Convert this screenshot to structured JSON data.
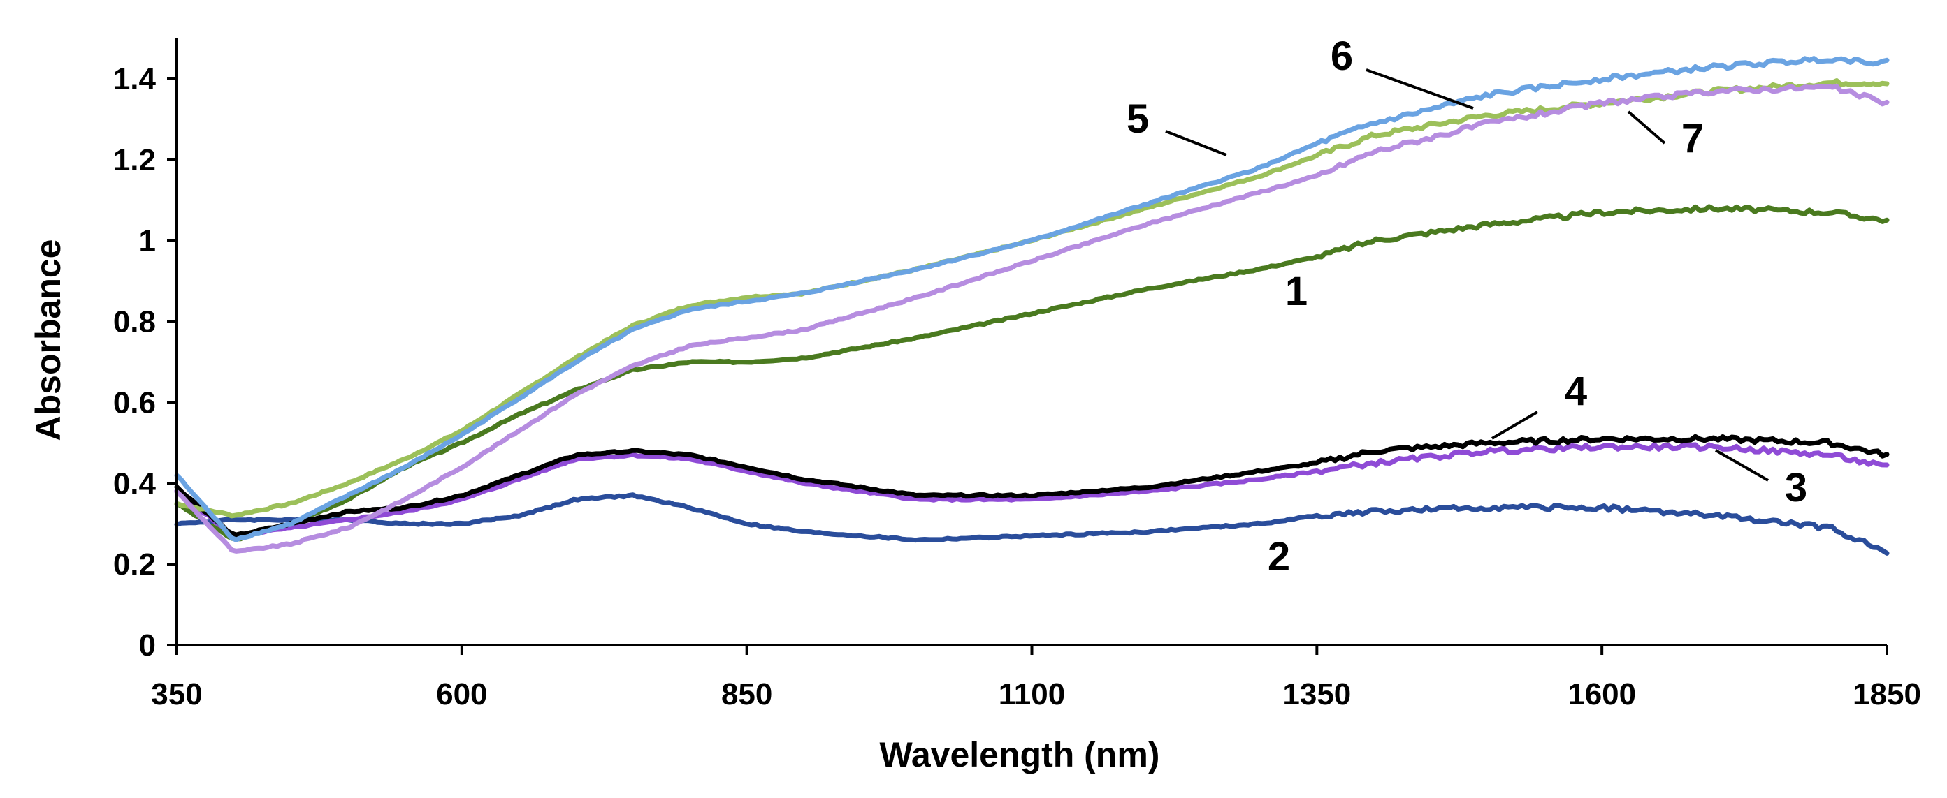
{
  "chart_data": {
    "type": "line",
    "title": "",
    "xlabel": "Wavelength (nm)",
    "ylabel": "Absorbance",
    "xlim": [
      350,
      1850
    ],
    "ylim": [
      0,
      1.5
    ],
    "xticks": [
      350,
      600,
      850,
      1100,
      1350,
      1600,
      1850
    ],
    "yticks": [
      0,
      0.2,
      0.4,
      0.6,
      0.8,
      1,
      1.2,
      1.4
    ],
    "xtick_labels": [
      "350",
      "600",
      "850",
      "1100",
      "1350",
      "1600",
      "1850"
    ],
    "ytick_labels": [
      "0",
      "0.2",
      "0.4",
      "0.6",
      "0.8",
      "1",
      "1.2",
      "1.4"
    ],
    "grid": false,
    "legend": "none; series identified by numeric callout labels",
    "series": [
      {
        "name": "1",
        "label": "1",
        "color": "#4a7a1f",
        "x": [
          350,
          400,
          450,
          500,
          550,
          600,
          650,
          700,
          750,
          800,
          850,
          900,
          1000,
          1100,
          1200,
          1300,
          1350,
          1400,
          1500,
          1600,
          1700,
          1800,
          1850
        ],
        "y": [
          0.35,
          0.26,
          0.3,
          0.36,
          0.44,
          0.5,
          0.57,
          0.63,
          0.68,
          0.7,
          0.7,
          0.71,
          0.76,
          0.82,
          0.88,
          0.93,
          0.96,
          1.0,
          1.04,
          1.07,
          1.08,
          1.07,
          1.05
        ]
      },
      {
        "name": "2",
        "label": "2",
        "color": "#2a4d9b",
        "x": [
          350,
          400,
          450,
          500,
          550,
          600,
          650,
          700,
          750,
          800,
          850,
          900,
          1000,
          1100,
          1200,
          1300,
          1350,
          1400,
          1500,
          1600,
          1700,
          1800,
          1850
        ],
        "y": [
          0.3,
          0.31,
          0.31,
          0.31,
          0.3,
          0.3,
          0.32,
          0.36,
          0.37,
          0.34,
          0.3,
          0.28,
          0.26,
          0.27,
          0.28,
          0.3,
          0.32,
          0.33,
          0.34,
          0.34,
          0.32,
          0.29,
          0.23
        ]
      },
      {
        "name": "3",
        "label": "3",
        "color": "#8f4bd6",
        "x": [
          350,
          400,
          450,
          500,
          550,
          600,
          650,
          700,
          750,
          800,
          850,
          900,
          1000,
          1100,
          1200,
          1300,
          1350,
          1400,
          1500,
          1600,
          1700,
          1800,
          1850
        ],
        "y": [
          0.38,
          0.27,
          0.29,
          0.31,
          0.33,
          0.36,
          0.41,
          0.46,
          0.47,
          0.46,
          0.43,
          0.4,
          0.36,
          0.36,
          0.38,
          0.41,
          0.43,
          0.45,
          0.48,
          0.49,
          0.49,
          0.47,
          0.44
        ]
      },
      {
        "name": "4",
        "label": "4",
        "color": "#000000",
        "x": [
          350,
          400,
          450,
          500,
          550,
          600,
          650,
          700,
          750,
          800,
          850,
          900,
          1000,
          1100,
          1200,
          1300,
          1350,
          1400,
          1500,
          1600,
          1700,
          1800,
          1850
        ],
        "y": [
          0.39,
          0.27,
          0.3,
          0.33,
          0.34,
          0.37,
          0.42,
          0.47,
          0.48,
          0.47,
          0.44,
          0.41,
          0.37,
          0.37,
          0.39,
          0.43,
          0.45,
          0.48,
          0.5,
          0.51,
          0.51,
          0.5,
          0.47
        ]
      },
      {
        "name": "5",
        "label": "5",
        "color": "#9cc05a",
        "x": [
          350,
          400,
          450,
          500,
          550,
          600,
          650,
          700,
          750,
          800,
          850,
          900,
          1000,
          1100,
          1200,
          1300,
          1350,
          1400,
          1500,
          1600,
          1700,
          1800,
          1850
        ],
        "y": [
          0.35,
          0.32,
          0.35,
          0.4,
          0.46,
          0.53,
          0.62,
          0.71,
          0.79,
          0.84,
          0.86,
          0.87,
          0.93,
          1.0,
          1.08,
          1.16,
          1.21,
          1.26,
          1.31,
          1.34,
          1.37,
          1.39,
          1.39
        ]
      },
      {
        "name": "6",
        "label": "6",
        "color": "#6aa3e2",
        "x": [
          350,
          400,
          450,
          500,
          550,
          600,
          650,
          700,
          750,
          800,
          850,
          900,
          1000,
          1100,
          1200,
          1300,
          1350,
          1400,
          1500,
          1600,
          1700,
          1800,
          1850
        ],
        "y": [
          0.42,
          0.26,
          0.3,
          0.37,
          0.44,
          0.52,
          0.61,
          0.7,
          0.78,
          0.83,
          0.85,
          0.87,
          0.93,
          1.0,
          1.09,
          1.18,
          1.24,
          1.29,
          1.36,
          1.4,
          1.43,
          1.45,
          1.44
        ]
      },
      {
        "name": "7",
        "label": "7",
        "color": "#b68de0",
        "x": [
          350,
          400,
          450,
          500,
          550,
          600,
          650,
          700,
          750,
          800,
          850,
          900,
          1000,
          1100,
          1200,
          1300,
          1350,
          1400,
          1500,
          1600,
          1700,
          1800,
          1850
        ],
        "y": [
          0.38,
          0.23,
          0.25,
          0.29,
          0.36,
          0.44,
          0.53,
          0.62,
          0.69,
          0.74,
          0.76,
          0.78,
          0.86,
          0.95,
          1.04,
          1.12,
          1.16,
          1.22,
          1.29,
          1.34,
          1.37,
          1.38,
          1.34
        ]
      }
    ]
  }
}
